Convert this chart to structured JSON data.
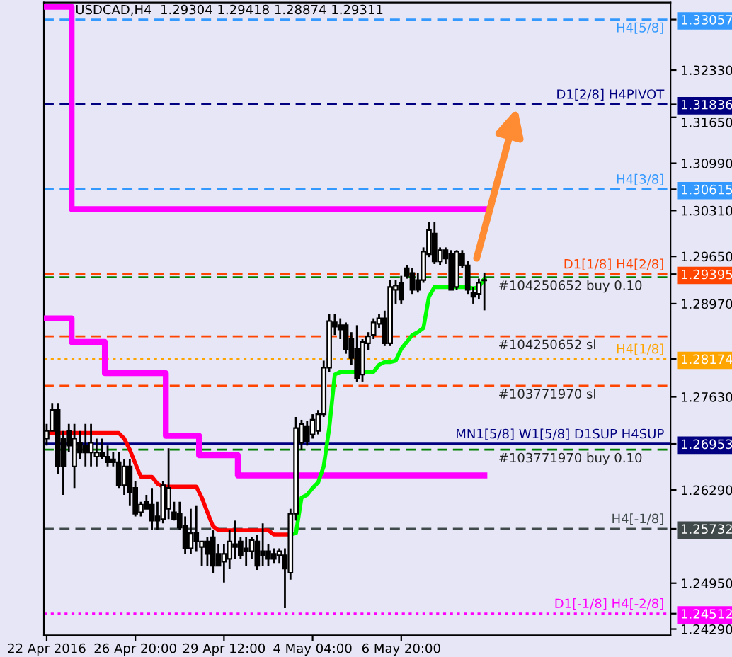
{
  "chart_data": {
    "type": "candlestick",
    "title": "USDCAD,H4  1.29304 1.29418 1.28874 1.29311",
    "categories": [
      "22 Apr 2016",
      null,
      null,
      null,
      null,
      null,
      null,
      null,
      null,
      null,
      null,
      null,
      null,
      null,
      null,
      null,
      "26 Apr 20:00",
      null,
      null,
      null,
      null,
      null,
      null,
      null,
      null,
      null,
      null,
      null,
      null,
      null,
      null,
      null,
      "29 Apr 12:00",
      null,
      null,
      null,
      null,
      null,
      null,
      null,
      null,
      null,
      null,
      null,
      null,
      null,
      null,
      null,
      "4 May 04:00",
      null,
      null,
      null,
      null,
      null,
      null,
      null,
      null,
      null,
      null,
      null,
      null,
      null,
      null,
      null,
      "6 May 20:00",
      null,
      null,
      null,
      null,
      null,
      null,
      null,
      null,
      null,
      null,
      null,
      null,
      null,
      null,
      null
    ],
    "ohlc": [
      [
        1.2703,
        1.2724,
        1.2693,
        1.2714
      ],
      [
        1.2714,
        1.2754,
        1.2714,
        1.2744
      ],
      [
        1.2744,
        1.2754,
        1.2652,
        1.2663
      ],
      [
        1.2703,
        1.2714,
        1.2622,
        1.2663
      ],
      [
        1.2714,
        1.2724,
        1.2683,
        1.2693
      ],
      [
        1.2663,
        1.2724,
        1.2632,
        1.2703
      ],
      [
        1.2697,
        1.2714,
        1.2673,
        1.2683
      ],
      [
        1.2693,
        1.2724,
        1.2663,
        1.2683
      ],
      [
        1.2683,
        1.2724,
        1.2663,
        1.2697
      ],
      [
        1.2677,
        1.2703,
        1.2663,
        1.2683
      ],
      [
        1.2683,
        1.2703,
        1.2673,
        1.2677
      ],
      [
        1.2677,
        1.2693,
        1.2663,
        1.2669
      ],
      [
        1.2673,
        1.2683,
        1.2663,
        1.2669
      ],
      [
        1.2669,
        1.2683,
        1.2632,
        1.2636
      ],
      [
        1.2636,
        1.2673,
        1.2622,
        1.2663
      ],
      [
        1.2663,
        1.2673,
        1.2606,
        1.2626
      ],
      [
        1.2632,
        1.2642,
        1.2591,
        1.2595
      ],
      [
        1.2597,
        1.2612,
        1.2591,
        1.2608
      ],
      [
        1.2612,
        1.2622,
        1.2602,
        1.2602
      ],
      [
        1.2608,
        1.2632,
        1.2571,
        1.2585
      ],
      [
        1.2591,
        1.2612,
        1.2571,
        1.2585
      ],
      [
        1.2587,
        1.2642,
        1.2581,
        1.2636
      ],
      [
        1.2602,
        1.2689,
        1.2587,
        1.2632
      ],
      [
        1.2597,
        1.2612,
        1.2585,
        1.2587
      ],
      [
        1.2595,
        1.2612,
        1.2571,
        1.2575
      ],
      [
        1.2577,
        1.2591,
        1.2537,
        1.2545
      ],
      [
        1.2545,
        1.2602,
        1.2537,
        1.2567
      ],
      [
        1.2567,
        1.2606,
        1.2541,
        1.2555
      ],
      [
        1.2547,
        1.2555,
        1.252,
        1.2555
      ],
      [
        1.2555,
        1.2561,
        1.252,
        1.2537
      ],
      [
        1.2561,
        1.2571,
        1.251,
        1.252
      ],
      [
        1.2537,
        1.2551,
        1.252,
        1.252
      ],
      [
        1.2526,
        1.2551,
        1.2496,
        1.2537
      ],
      [
        1.253,
        1.2571,
        1.2516,
        1.2555
      ],
      [
        1.2551,
        1.2585,
        1.253,
        1.2547
      ],
      [
        1.2555,
        1.2561,
        1.253,
        1.2535
      ],
      [
        1.2545,
        1.2561,
        1.252,
        1.2541
      ],
      [
        1.2541,
        1.2561,
        1.253,
        1.2557
      ],
      [
        1.2555,
        1.2565,
        1.2514,
        1.252
      ],
      [
        1.2541,
        1.2581,
        1.252,
        1.2535
      ],
      [
        1.2541,
        1.2551,
        1.252,
        1.253
      ],
      [
        1.2537,
        1.2545,
        1.2524,
        1.253
      ],
      [
        1.2535,
        1.2545,
        1.2524,
        1.2541
      ],
      [
        1.2535,
        1.2545,
        1.2459,
        1.2516
      ],
      [
        1.251,
        1.2602,
        1.25,
        1.2595
      ],
      [
        1.2595,
        1.2734,
        1.2585,
        1.2718
      ],
      [
        1.2697,
        1.273,
        1.2687,
        1.2724
      ],
      [
        1.272,
        1.2728,
        1.2693,
        1.2699
      ],
      [
        1.2709,
        1.2738,
        1.2703,
        1.273
      ],
      [
        1.2714,
        1.2744,
        1.2709,
        1.2738
      ],
      [
        1.2738,
        1.2815,
        1.2734,
        1.2805
      ],
      [
        1.2805,
        1.2882,
        1.2799,
        1.2872
      ],
      [
        1.287,
        1.2882,
        1.2852,
        1.2864
      ],
      [
        1.2866,
        1.2876,
        1.2846,
        1.286
      ],
      [
        1.2866,
        1.287,
        1.2825,
        1.2832
      ],
      [
        1.2846,
        1.2856,
        1.2809,
        1.2819
      ],
      [
        1.2832,
        1.2866,
        1.2785,
        1.2789
      ],
      [
        1.2795,
        1.2846,
        1.2785,
        1.2842
      ],
      [
        1.284,
        1.2856,
        1.283,
        1.285
      ],
      [
        1.2852,
        1.2876,
        1.2846,
        1.287
      ],
      [
        1.2868,
        1.2882,
        1.2862,
        1.2876
      ],
      [
        1.2876,
        1.2887,
        1.2836,
        1.284
      ],
      [
        1.284,
        1.2931,
        1.2836,
        1.2921
      ],
      [
        1.2917,
        1.2931,
        1.2897,
        1.2923
      ],
      [
        1.2927,
        1.2937,
        1.2897,
        1.2903
      ],
      [
        1.2948,
        1.2952,
        1.2933,
        1.2937
      ],
      [
        1.2941,
        1.2948,
        1.2911,
        1.2917
      ],
      [
        1.2931,
        1.2941,
        1.2913,
        1.2917
      ],
      [
        1.2931,
        1.2978,
        1.2927,
        1.2972
      ],
      [
        1.2968,
        1.3015,
        1.2964,
        1.3003
      ],
      [
        1.2998,
        1.3015,
        1.2954,
        1.2958
      ],
      [
        1.2958,
        1.2978,
        1.2952,
        1.2974
      ],
      [
        1.2974,
        1.2978,
        1.2954,
        1.2962
      ],
      [
        1.2968,
        1.2974,
        1.2917,
        1.2917
      ],
      [
        1.2921,
        1.2974,
        1.2917,
        1.2972
      ],
      [
        1.2968,
        1.2974,
        1.2948,
        1.2952
      ],
      [
        1.2952,
        1.2958,
        1.2911,
        1.2917
      ],
      [
        1.2913,
        1.2921,
        1.2897,
        1.2907
      ],
      [
        1.2911,
        1.2933,
        1.2903,
        1.2927
      ],
      [
        1.29304,
        1.29418,
        1.28874,
        1.29311
      ]
    ],
    "series": [
      {
        "type": "step",
        "color": "#ff00ff",
        "values": [
          1.3324,
          1.3324,
          1.3324,
          1.3324,
          1.3324,
          1.3033,
          1.3033,
          1.3033,
          1.3033,
          1.3033,
          1.3033,
          1.3033,
          1.3033,
          1.3033,
          1.3033,
          1.3033,
          1.3033,
          1.3033,
          1.3033,
          1.3033,
          1.3033,
          1.3033,
          1.3033,
          1.3033,
          1.3033,
          1.3033,
          1.3033,
          1.3033,
          1.3033,
          1.3033,
          1.3033,
          1.3033,
          1.3033,
          1.3033,
          1.3033,
          1.3033,
          1.3033,
          1.3033,
          1.3033,
          1.3033,
          1.3033,
          1.3033,
          1.3033,
          1.3033,
          1.3033,
          1.3033,
          1.3033,
          1.3033,
          1.3033,
          1.3033,
          1.3033,
          1.3033,
          1.3033,
          1.3033,
          1.3033,
          1.3033,
          1.3033,
          1.3033,
          1.3033,
          1.3033,
          1.3033,
          1.3033,
          1.3033,
          1.3033,
          1.3033,
          1.3033,
          1.3033,
          1.3033,
          1.3033,
          1.3033,
          1.3033,
          1.3033,
          1.3033,
          1.3033,
          1.3033,
          1.3033,
          1.3033,
          1.3033,
          1.3033,
          1.3033
        ]
      },
      {
        "type": "step",
        "color": "#ff00ff",
        "values": [
          1.2876,
          1.2876,
          1.2876,
          1.2876,
          1.2876,
          1.2842,
          1.2842,
          1.2842,
          1.2842,
          1.2842,
          1.2842,
          1.2797,
          1.2797,
          1.2797,
          1.2797,
          1.2797,
          1.2797,
          1.2797,
          1.2797,
          1.2797,
          1.2797,
          1.2797,
          1.2707,
          1.2707,
          1.2707,
          1.2707,
          1.2707,
          1.2707,
          1.2679,
          1.2679,
          1.2679,
          1.2679,
          1.2679,
          1.2679,
          1.2679,
          1.265,
          1.265,
          1.265,
          1.265,
          1.265,
          1.265,
          1.265,
          1.265,
          1.265,
          1.265,
          1.265,
          1.265,
          1.265,
          1.265,
          1.265,
          1.265,
          1.265,
          1.265,
          1.265,
          1.265,
          1.265,
          1.265,
          1.265,
          1.265,
          1.265,
          1.265,
          1.265,
          1.265,
          1.265,
          1.265,
          1.265,
          1.265,
          1.265,
          1.265,
          1.265,
          1.265,
          1.265,
          1.265,
          1.265,
          1.265,
          1.265,
          1.265,
          1.265,
          1.265,
          1.265
        ]
      },
      {
        "type": "line",
        "color": "#ff0000",
        "values": [
          1.2711,
          1.2711,
          1.2711,
          1.2711,
          1.2711,
          1.2711,
          1.2711,
          1.2711,
          1.2711,
          1.2711,
          1.2711,
          1.2711,
          1.2711,
          1.2711,
          1.2703,
          1.2687,
          1.2667,
          1.2648,
          1.2648,
          1.2648,
          1.2638,
          1.2634,
          1.2634,
          1.2634,
          1.2634,
          1.2634,
          1.2634,
          1.2634,
          1.2618,
          1.2597,
          1.2577,
          1.2571,
          1.2571,
          1.2571,
          1.2571,
          1.2571,
          1.2571,
          1.2571,
          1.2571,
          1.2571,
          1.2571,
          1.2565,
          1.2565,
          1.2565,
          1.2565,
          null,
          null,
          null,
          null,
          null,
          null,
          null,
          null,
          null,
          null,
          null,
          null,
          null,
          null,
          null,
          null,
          null,
          null,
          null,
          null,
          null,
          null,
          null,
          null,
          null,
          null,
          null,
          null,
          null,
          null,
          null,
          null,
          null,
          null,
          null
        ]
      },
      {
        "type": "line",
        "color": "#00ff00",
        "values": [
          null,
          null,
          null,
          null,
          null,
          null,
          null,
          null,
          null,
          null,
          null,
          null,
          null,
          null,
          null,
          null,
          null,
          null,
          null,
          null,
          null,
          null,
          null,
          null,
          null,
          null,
          null,
          null,
          null,
          null,
          null,
          null,
          null,
          null,
          null,
          null,
          null,
          null,
          null,
          null,
          null,
          null,
          null,
          null,
          1.2565,
          1.2567,
          1.2618,
          1.2622,
          1.2632,
          1.264,
          1.2663,
          1.2718,
          1.2795,
          1.2799,
          1.2799,
          1.2799,
          1.2799,
          1.2799,
          1.2799,
          1.2799,
          1.2809,
          1.2813,
          1.2813,
          1.2815,
          1.2832,
          1.2842,
          1.2852,
          1.2856,
          1.2862,
          1.2907,
          1.2921,
          1.2921,
          1.2921,
          1.2921,
          1.2921,
          1.2921,
          1.2921,
          1.2919,
          1.2921,
          1.2933
        ]
      }
    ],
    "ylim": [
      1.242,
      1.333
    ],
    "yticks": [
      {
        "value": 1.3233,
        "label": "1.32330"
      },
      {
        "value": 1.3165,
        "label": "1.31650"
      },
      {
        "value": 1.3099,
        "label": "1.30990"
      },
      {
        "value": 1.3031,
        "label": "1.30310"
      },
      {
        "value": 1.2965,
        "label": "1.29650"
      },
      {
        "value": 1.2897,
        "label": "1.28970"
      },
      {
        "value": 1.2763,
        "label": "1.27630"
      },
      {
        "value": 1.2629,
        "label": "1.26290"
      },
      {
        "value": 1.2495,
        "label": "1.24950"
      },
      {
        "value": 1.2429,
        "label": "1.24290"
      },
      1.33057,
      1.31836,
      1.30615,
      1.29395,
      1.28174,
      1.26953,
      1.25732,
      1.24512
    ],
    "ref_lines": [
      {
        "axis": "y",
        "value": 1.33057,
        "label": "H4[5/8]",
        "color": "#3399ff",
        "line_style": "dashed"
      },
      {
        "axis": "y",
        "value": 1.31836,
        "label": "D1[2/8] H4PIVOT",
        "color": "#000080",
        "line_style": "dashed"
      },
      {
        "axis": "y",
        "value": 1.30615,
        "label": "H4[3/8]",
        "color": "#3399ff",
        "line_style": "dashed"
      },
      {
        "axis": "y",
        "value": 1.29395,
        "label": "D1[1/8] H4[2/8]",
        "color": "#ff4500",
        "line_style": "dashed"
      },
      {
        "axis": "y",
        "value": 1.2935,
        "label": "#104250652 buy 0.10",
        "color": "#008000",
        "line_style": "dashed"
      },
      {
        "axis": "y",
        "value": 1.285,
        "label": "#104250652 sl",
        "color": "#ff4500",
        "line_style": "dashed"
      },
      {
        "axis": "y",
        "value": 1.28174,
        "label": "H4[1/8]",
        "color": "#ffa500",
        "line_style": "dotted"
      },
      {
        "axis": "y",
        "value": 1.2779,
        "label": "#103771970 sl",
        "color": "#ff4500",
        "line_style": "dashed"
      },
      {
        "axis": "y",
        "value": 1.26953,
        "label": "MN1[5/8] W1[5/8] D1SUP H4SUP",
        "color": "#000080",
        "line_style": "solid"
      },
      {
        "axis": "y",
        "value": 1.2687,
        "label": "#103771970 buy 0.10",
        "color": "#008000",
        "line_style": "dashed"
      },
      {
        "axis": "y",
        "value": 1.25732,
        "label": "H4[-1/8]",
        "color": "#404a4a",
        "line_style": "dashed"
      },
      {
        "axis": "y",
        "value": 1.24512,
        "label": "D1[-1/8] H4[-2/8]",
        "color": "#ff00ff",
        "line_style": "dotted"
      }
    ],
    "grid": false,
    "legend": false
  }
}
